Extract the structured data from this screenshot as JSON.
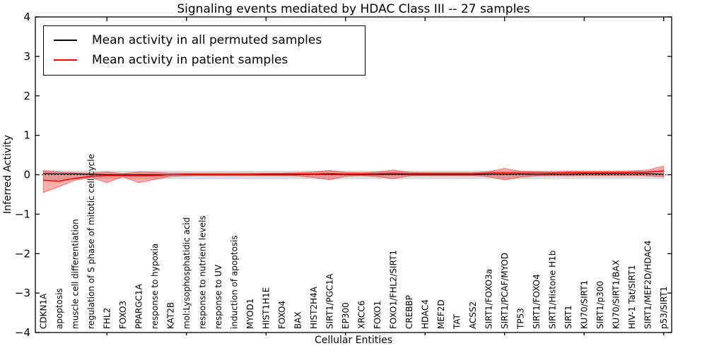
{
  "chart_data": {
    "type": "line",
    "title": "Signaling events mediated by HDAC Class III -- 27 samples",
    "xlabel": "Cellular Entities",
    "ylabel": "Inferred Activity",
    "ylim": [
      -4,
      4
    ],
    "yticks": [
      -4,
      -3,
      -2,
      -1,
      0,
      1,
      2,
      3,
      4
    ],
    "grid": false,
    "legend_position": "upper left",
    "zero_line": {
      "y": 0,
      "style": "dotted",
      "color": "#000000"
    },
    "categories": [
      "CDKN1A",
      "apoptosis",
      "muscle cell differentiation",
      "regulation of S phase of mitotic cell cycle",
      "FHL2",
      "FOXO3",
      "PPARGC1A",
      "response to hypoxia",
      "KAT2B",
      "mol:Lysophosphatidic acid",
      "response to nutrient levels",
      "response to UV",
      "induction of apoptosis",
      "MYOD1",
      "HIST1H1E",
      "FOXO4",
      "BAX",
      "HIST2H4A",
      "SIRT1/PGC1A",
      "EP300",
      "XRCC6",
      "FOXO1",
      "FOXO1/FHL2/SIRT1",
      "CREBBP",
      "HDAC4",
      "MEF2D",
      "TAT",
      "ACSS2",
      "SIRT1/FOXO3a",
      "SIRT1/PCAF/MYOD",
      "TP53",
      "SIRT1/FOXO4",
      "SIRT1/Histone H1b",
      "SIRT1",
      "KU70/SIRT1",
      "SIRT1/p300",
      "KU70/SIRT1/BAX",
      "HIV-1 Tat/SIRT1",
      "SIRT1/MEF2D/HDAC4",
      "p53/SIRT1"
    ],
    "series": [
      {
        "name": "Mean activity in all permuted samples",
        "color": "#000000",
        "values": [
          0.03,
          0.02,
          0.02,
          0.01,
          0.0,
          0.0,
          0.0,
          0.0,
          0.0,
          0.0,
          0.0,
          0.0,
          0.0,
          0.0,
          0.0,
          0.0,
          0.0,
          0.01,
          0.01,
          0.0,
          0.0,
          0.0,
          0.01,
          0.0,
          0.0,
          0.0,
          0.0,
          0.0,
          0.01,
          0.01,
          0.01,
          0.0,
          0.01,
          0.01,
          0.02,
          0.02,
          0.02,
          0.02,
          0.03,
          0.01
        ]
      },
      {
        "name": "Mean activity in patient samples",
        "color": "#ff0000",
        "values": [
          -0.14,
          -0.16,
          -0.09,
          -0.04,
          -0.02,
          -0.02,
          -0.03,
          -0.02,
          0.0,
          0.01,
          0.01,
          0.01,
          0.01,
          0.01,
          0.02,
          0.02,
          0.02,
          0.02,
          0.03,
          0.02,
          0.02,
          0.03,
          0.04,
          0.03,
          0.03,
          0.03,
          0.03,
          0.03,
          0.04,
          0.05,
          0.04,
          0.04,
          0.04,
          0.05,
          0.05,
          0.05,
          0.05,
          0.06,
          0.07,
          0.1
        ]
      }
    ],
    "bands": [
      {
        "name": "permuted-samples-confidence-band",
        "color": "rgba(0,0,0,0.13)",
        "edge": "rgba(0,0,0,0.10)",
        "upper": [
          0.11,
          0.1,
          0.09,
          0.09,
          0.09,
          0.09,
          0.09,
          0.09,
          0.09,
          0.09,
          0.09,
          0.09,
          0.09,
          0.09,
          0.09,
          0.09,
          0.09,
          0.09,
          0.1,
          0.09,
          0.09,
          0.09,
          0.09,
          0.09,
          0.09,
          0.09,
          0.09,
          0.09,
          0.09,
          0.09,
          0.09,
          0.09,
          0.08,
          0.08,
          0.08,
          0.08,
          0.08,
          0.08,
          0.08,
          0.08
        ],
        "lower": [
          -0.13,
          -0.12,
          -0.11,
          -0.1,
          -0.1,
          -0.1,
          -0.1,
          -0.1,
          -0.1,
          -0.1,
          -0.1,
          -0.1,
          -0.1,
          -0.1,
          -0.1,
          -0.1,
          -0.1,
          -0.1,
          -0.1,
          -0.1,
          -0.1,
          -0.1,
          -0.1,
          -0.1,
          -0.1,
          -0.1,
          -0.1,
          -0.1,
          -0.1,
          -0.1,
          -0.1,
          -0.1,
          -0.1,
          -0.1,
          -0.1,
          -0.1,
          -0.1,
          -0.1,
          -0.1,
          -0.1
        ]
      },
      {
        "name": "patient-samples-confidence-band",
        "color": "rgba(255,0,0,0.32)",
        "edge": "rgba(255,0,0,0.45)",
        "upper": [
          0.1,
          0.07,
          0.05,
          0.04,
          0.07,
          0.03,
          0.07,
          0.06,
          0.04,
          0.04,
          0.04,
          0.04,
          0.04,
          0.04,
          0.04,
          0.04,
          0.05,
          0.07,
          0.11,
          0.06,
          0.05,
          0.07,
          0.12,
          0.06,
          0.05,
          0.05,
          0.05,
          0.05,
          0.08,
          0.16,
          0.09,
          0.08,
          0.08,
          0.09,
          0.09,
          0.09,
          0.09,
          0.1,
          0.12,
          0.22
        ],
        "lower": [
          -0.45,
          -0.3,
          -0.14,
          -0.07,
          -0.2,
          -0.05,
          -0.2,
          -0.12,
          -0.04,
          -0.03,
          -0.02,
          -0.02,
          -0.02,
          -0.02,
          -0.02,
          -0.02,
          -0.03,
          -0.07,
          -0.13,
          -0.04,
          -0.02,
          -0.05,
          -0.1,
          -0.03,
          -0.02,
          -0.02,
          -0.02,
          -0.02,
          -0.05,
          -0.13,
          -0.06,
          -0.03,
          -0.02,
          -0.03,
          -0.02,
          -0.02,
          -0.02,
          -0.02,
          -0.03,
          -0.05
        ]
      }
    ],
    "major_tick_every": 5
  }
}
